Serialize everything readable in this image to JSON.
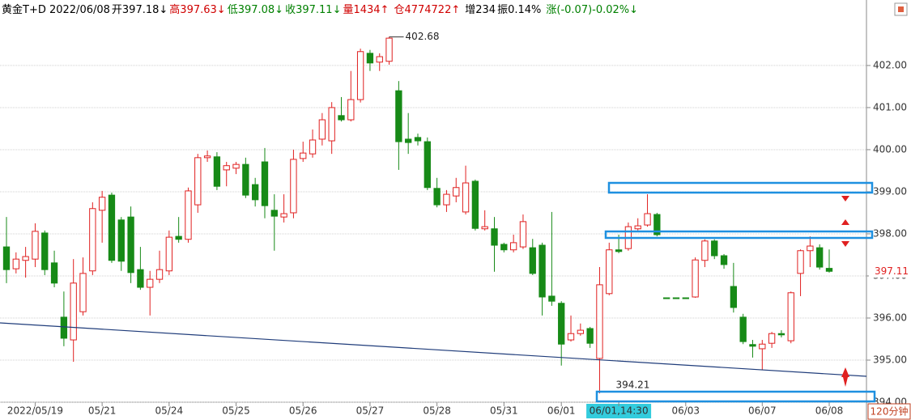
{
  "chart_data": {
    "type": "candlestick",
    "header": [
      {
        "text": "黄金T+D 2022/06/08",
        "color": "#000000"
      },
      {
        "text": "开397.18↓",
        "color": "#000000"
      },
      {
        "text": "高397.63↓",
        "color": "#d00000"
      },
      {
        "text": "低397.08↓",
        "color": "#008000"
      },
      {
        "text": "收397.11↓",
        "color": "#008000"
      },
      {
        "text": "量1434↑",
        "color": "#d00000"
      },
      {
        "text": "仓4774722↑",
        "color": "#d00000"
      },
      {
        "text": "增234",
        "color": "#000000"
      },
      {
        "text": "振0.14%",
        "color": "#000000"
      },
      {
        "text": "涨(-0.07)-0.02%↓",
        "color": "#008000"
      }
    ],
    "period": "120分钟",
    "categories": [
      null,
      null,
      null,
      "2022/05/19",
      null,
      null,
      null,
      null,
      null,
      null,
      "05/21",
      null,
      null,
      null,
      null,
      null,
      null,
      "05/24",
      null,
      null,
      null,
      null,
      null,
      null,
      "05/25",
      null,
      null,
      null,
      null,
      null,
      null,
      "05/26",
      null,
      null,
      null,
      null,
      null,
      null,
      "05/27",
      null,
      null,
      null,
      null,
      null,
      null,
      "05/28",
      null,
      null,
      null,
      null,
      null,
      null,
      "05/31",
      null,
      null,
      null,
      null,
      null,
      "06/01",
      null,
      null,
      null,
      null,
      null,
      "06/01,14:30",
      null,
      null,
      null,
      null,
      null,
      null,
      "06/03",
      null,
      null,
      null,
      null,
      null,
      null,
      null,
      "06/07",
      null,
      null,
      null,
      null,
      null,
      null,
      "06/08"
    ],
    "open": [
      397.69,
      397.17,
      397.37,
      397.4,
      398.02,
      397.31,
      396.02,
      395.48,
      396.15,
      397.12,
      398.56,
      398.92,
      398.33,
      398.4,
      397.15,
      396.73,
      396.92,
      397.12,
      397.94,
      397.87,
      398.69,
      399.81,
      399.83,
      399.52,
      399.56,
      399.65,
      399.17,
      399.71,
      398.56,
      398.4,
      398.5,
      399.79,
      399.9,
      400.25,
      400.21,
      400.81,
      400.71,
      401.19,
      402.29,
      402.08,
      402.1,
      401.4,
      400.25,
      400.29,
      400.19,
      399.08,
      398.69,
      398.9,
      398.52,
      399.25,
      398.12,
      398.12,
      397.75,
      397.62,
      397.69,
      397.67,
      397.73,
      396.52,
      396.35,
      395.48,
      395.63,
      395.75,
      395.04,
      396.58,
      397.62,
      397.65,
      398.12,
      398.21,
      398.46,
      396.48,
      396.48,
      396.48,
      396.5,
      397.37,
      397.83,
      397.48,
      396.75,
      396.02,
      395.37,
      395.27,
      395.4,
      395.63,
      395.46,
      397.06,
      397.6,
      397.67,
      397.18
    ],
    "high": [
      398.4,
      397.56,
      397.69,
      398.25,
      398.08,
      397.6,
      396.63,
      397.4,
      397.44,
      398.75,
      399.02,
      398.98,
      398.4,
      398.65,
      397.69,
      397.12,
      397.6,
      398.08,
      398.4,
      399.1,
      399.9,
      399.98,
      399.94,
      399.71,
      399.71,
      399.81,
      399.33,
      400.04,
      398.94,
      398.94,
      400.0,
      400.19,
      400.48,
      400.87,
      401.13,
      401.25,
      401.87,
      402.4,
      402.37,
      402.29,
      402.68,
      401.63,
      400.87,
      400.38,
      400.29,
      399.33,
      399.04,
      399.33,
      399.62,
      399.29,
      398.56,
      398.4,
      397.79,
      397.98,
      398.46,
      397.88,
      397.79,
      398.52,
      396.4,
      396.06,
      395.87,
      395.79,
      397.21,
      397.79,
      397.98,
      398.27,
      398.37,
      398.94,
      398.5,
      396.48,
      396.48,
      396.48,
      397.44,
      397.87,
      397.87,
      397.52,
      397.31,
      396.1,
      395.48,
      395.48,
      395.67,
      395.71,
      396.63,
      397.63,
      397.94,
      397.75,
      397.63
    ],
    "low": [
      396.83,
      397.06,
      396.96,
      397.21,
      397.02,
      396.73,
      395.33,
      394.96,
      396.06,
      397.02,
      397.79,
      397.31,
      397.12,
      396.83,
      396.67,
      396.06,
      396.83,
      397.02,
      397.79,
      397.79,
      398.5,
      399.71,
      399.04,
      399.13,
      399.42,
      398.85,
      398.65,
      398.37,
      397.6,
      398.27,
      398.37,
      399.71,
      399.81,
      400.1,
      399.9,
      400.67,
      400.67,
      401.12,
      401.87,
      401.87,
      402.02,
      399.52,
      399.9,
      400.1,
      399.04,
      398.63,
      398.52,
      398.75,
      398.46,
      398.08,
      398.08,
      397.1,
      397.56,
      397.56,
      397.64,
      397.02,
      396.06,
      396.29,
      394.87,
      395.44,
      395.58,
      395.29,
      394.21,
      396.54,
      397.54,
      397.6,
      398.08,
      398.17,
      397.94,
      396.48,
      396.48,
      396.48,
      396.48,
      397.21,
      397.4,
      397.17,
      396.13,
      395.38,
      395.06,
      394.77,
      395.29,
      395.54,
      395.4,
      396.52,
      397.21,
      397.15,
      397.08
    ],
    "close": [
      397.15,
      397.4,
      397.46,
      398.06,
      397.15,
      396.83,
      395.52,
      396.83,
      397.06,
      398.6,
      398.87,
      397.37,
      397.35,
      397.08,
      396.73,
      396.92,
      397.15,
      397.92,
      397.87,
      399.02,
      399.81,
      399.85,
      399.13,
      399.62,
      399.65,
      398.92,
      398.81,
      398.67,
      398.42,
      398.48,
      399.77,
      399.92,
      400.23,
      400.71,
      401.0,
      400.71,
      401.19,
      402.33,
      402.06,
      402.21,
      402.65,
      400.19,
      400.17,
      400.21,
      399.1,
      398.69,
      398.94,
      399.1,
      399.21,
      398.13,
      398.17,
      397.73,
      397.62,
      397.79,
      398.29,
      397.06,
      396.5,
      396.4,
      395.38,
      395.63,
      395.71,
      395.4,
      396.79,
      397.62,
      397.58,
      398.17,
      398.19,
      398.48,
      397.98,
      396.48,
      396.48,
      396.48,
      397.38,
      397.83,
      397.48,
      397.27,
      396.25,
      395.44,
      395.33,
      395.38,
      395.63,
      395.6,
      396.6,
      397.6,
      397.71,
      397.21,
      397.11
    ],
    "up_color": "#e02020",
    "down_color": "#178a17",
    "ylim": [
      394,
      403.46
    ],
    "yticks": [
      {
        "value": 394,
        "label": "394.00"
      },
      {
        "value": 395,
        "label": "395.00"
      },
      {
        "value": 396,
        "label": "396.00"
      },
      {
        "value": 397,
        "label": "397.00"
      },
      {
        "value": 398,
        "label": "398.00"
      },
      {
        "value": 399,
        "label": "399.00"
      },
      {
        "value": 400,
        "label": "400.00"
      },
      {
        "value": 401,
        "label": "401.00"
      },
      {
        "value": 402,
        "label": "402.00"
      }
    ],
    "grid": true
  }
}
